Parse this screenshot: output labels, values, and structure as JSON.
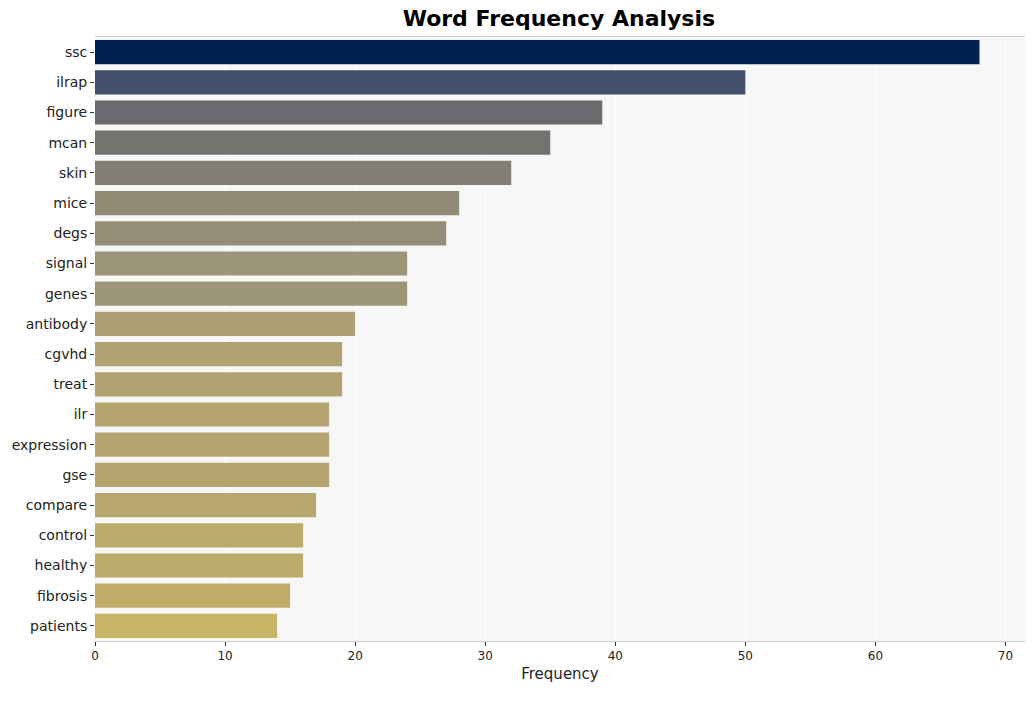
{
  "chart_data": {
    "type": "bar",
    "title": "Word Frequency Analysis",
    "orientation": "horizontal",
    "x_label": "Frequency",
    "categories": [
      "ssc",
      "ilrap",
      "figure",
      "mcan",
      "skin",
      "mice",
      "degs",
      "signal",
      "genes",
      "antibody",
      "cgvhd",
      "treat",
      "ilr",
      "expression",
      "gse",
      "compare",
      "control",
      "healthy",
      "fibrosis",
      "patients"
    ],
    "values": [
      68,
      50,
      39,
      35,
      32,
      28,
      27,
      24,
      24,
      20,
      19,
      19,
      18,
      18,
      18,
      17,
      16,
      16,
      15,
      14
    ],
    "colors": [
      "#00224e",
      "#424f6b",
      "#6b6b6f",
      "#737370",
      "#827e76",
      "#928c77",
      "#948e77",
      "#9d9577",
      "#9d9677",
      "#ac9f74",
      "#b0a272",
      "#b0a272",
      "#b4a570",
      "#b4a570",
      "#b4a570",
      "#b8a76e",
      "#bca96c",
      "#bca96c",
      "#c0ac69",
      "#c7b566"
    ],
    "xlim": [
      0,
      71.5
    ],
    "xticks": [
      0,
      10,
      20,
      30,
      40,
      50,
      60,
      70
    ],
    "grid": true
  }
}
